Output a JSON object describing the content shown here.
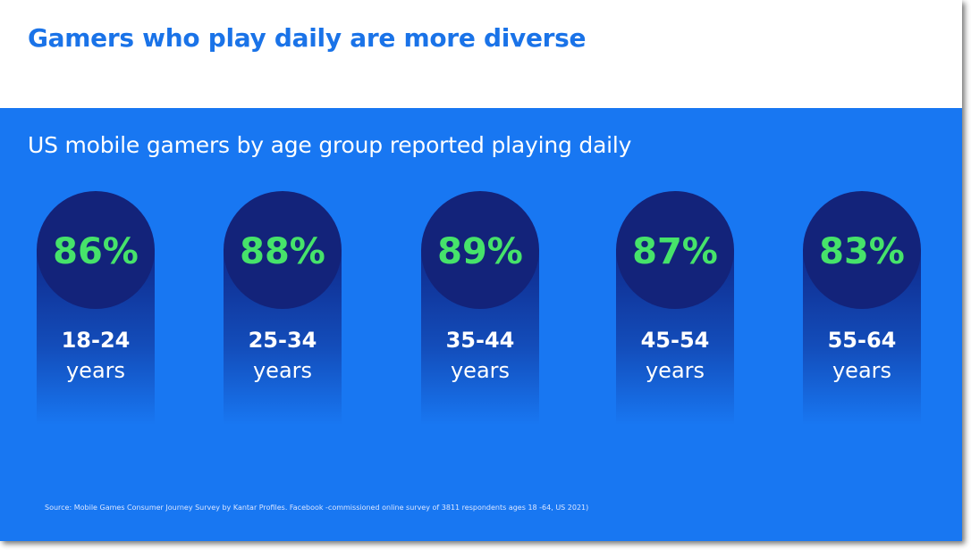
{
  "title": "Gamers who play daily are more diverse",
  "colors": {
    "title": "#1a73e8",
    "panel": "#1877f2",
    "circle": "#13237a",
    "value_text": "#46e36a",
    "column_top": "#0f2a8c"
  },
  "chart_data": {
    "type": "bar",
    "title": "US mobile gamers by age group reported playing daily",
    "categories": [
      {
        "age": "18-24",
        "unit": "years"
      },
      {
        "age": "25-34",
        "unit": "years"
      },
      {
        "age": "35-44",
        "unit": "years"
      },
      {
        "age": "45-54",
        "unit": "years"
      },
      {
        "age": "55-64",
        "unit": "years"
      }
    ],
    "values": [
      86,
      88,
      89,
      87,
      83
    ],
    "value_labels": [
      "86%",
      "88%",
      "89%",
      "87%",
      "83%"
    ]
  },
  "source": "Source: Mobile Games Consumer Journey Survey by Kantar Profiles. Facebook -commissioned online survey of 3811 respondents ages 18 -64, US 2021)"
}
